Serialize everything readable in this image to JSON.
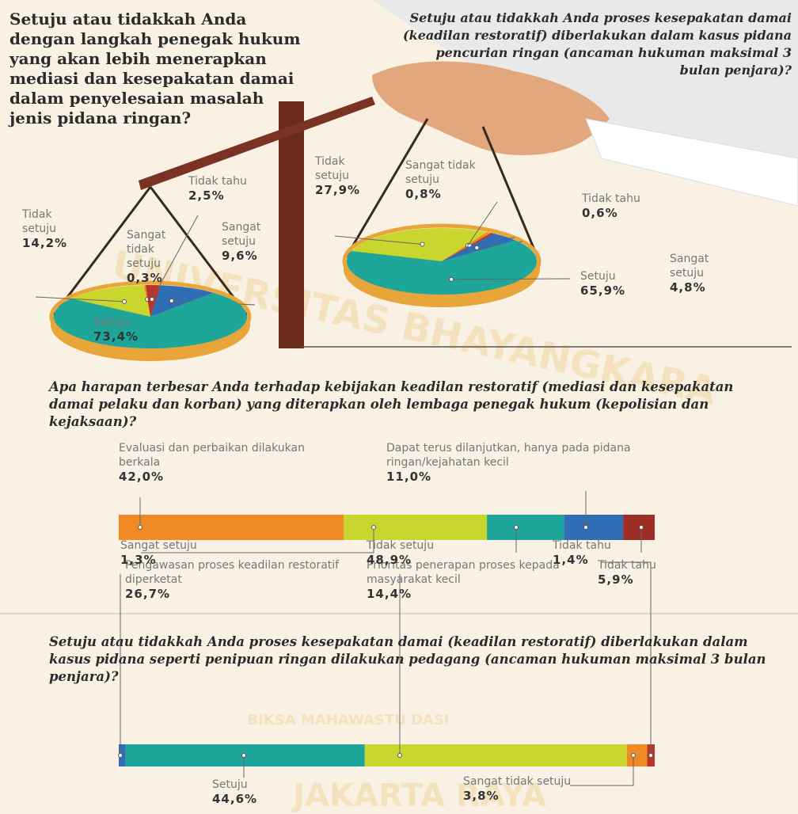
{
  "chart_data": [
    {
      "type": "pie",
      "title": "Setuju atau tidakkah Anda dengan langkah penegak hukum yang akan lebih menerapkan mediasi dan kesepakatan damai dalam penyelesaian masalah jenis pidana ringan?",
      "categories": [
        "Tidak setuju",
        "Sangat tidak setuju",
        "Tidak tahu",
        "Sangat setuju",
        "Setuju"
      ],
      "values": [
        14.2,
        0.3,
        2.5,
        9.6,
        73.4
      ],
      "value_labels": [
        "14,2%",
        "0,3%",
        "2,5%",
        "9,6%",
        "73,4%"
      ],
      "colors": [
        "#c9d62e",
        "#f08a24",
        "#b7352b",
        "#2f6db4",
        "#1fa69a"
      ]
    },
    {
      "type": "pie",
      "title": "Setuju atau tidakkah Anda proses kesepakatan damai (keadilan restoratif) diberlakukan dalam kasus pidana pencurian ringan (ancaman hukuman maksimal 3 bulan penjara)?",
      "categories": [
        "Tidak setuju",
        "Sangat tidak setuju",
        "Tidak tahu",
        "Sangat setuju",
        "Setuju"
      ],
      "values": [
        27.9,
        0.8,
        0.6,
        4.8,
        65.9
      ],
      "value_labels": [
        "27,9%",
        "0,8%",
        "0,6%",
        "4,8%",
        "65,9%"
      ],
      "colors": [
        "#c9d62e",
        "#f08a24",
        "#b7352b",
        "#2f6db4",
        "#1fa69a"
      ]
    },
    {
      "type": "stacked-bar",
      "title": "Apa harapan terbesar Anda terhadap kebijakan keadilan restoratif (mediasi dan kesepakatan damai pelaku dan korban) yang diterapkan oleh lembaga penegak hukum (kepolisian dan kejaksaan)?",
      "categories": [
        "Evaluasi dan perbaikan dilakukan berkala",
        "Pengawasan proses keadilan restoratif diperketat",
        "Prioritas penerapan proses kepada masyarakat kecil",
        "Dapat terus dilanjutkan, hanya pada pidana ringan/kejahatan kecil",
        "Tidak tahu"
      ],
      "values": [
        42.0,
        26.7,
        14.4,
        11.0,
        5.9
      ],
      "value_labels": [
        "42,0%",
        "26,7%",
        "14,4%",
        "11,0%",
        "5,9%"
      ],
      "colors": [
        "#f08a24",
        "#c9d62e",
        "#1fa69a",
        "#2f6db4",
        "#9e2f26"
      ],
      "xlim": [
        0,
        100
      ]
    },
    {
      "type": "stacked-bar",
      "title": "Setuju atau tidakkah Anda proses kesepakatan damai (keadilan restoratif) diberlakukan dalam kasus pidana seperti penipuan ringan dilakukan pedagang (ancaman hukuman maksimal 3 bulan penjara)?",
      "categories": [
        "Sangat setuju",
        "Setuju",
        "Tidak setuju",
        "Sangat tidak setuju",
        "Tidak tahu"
      ],
      "values": [
        1.3,
        44.6,
        48.9,
        3.8,
        1.4
      ],
      "value_labels": [
        "1,3%",
        "44,6%",
        "48,9%",
        "3,8%",
        "1,4%"
      ],
      "colors": [
        "#2f6db4",
        "#1fa69a",
        "#c9d62e",
        "#f08a24",
        "#b7352b"
      ],
      "xlim": [
        0,
        100
      ]
    }
  ],
  "watermark": {
    "top": "UNIVERSITAS BHAYANGKARA",
    "motto": "BIKSA MAHAWASTU DASI",
    "bottom": "JAKARTA RAYA"
  }
}
